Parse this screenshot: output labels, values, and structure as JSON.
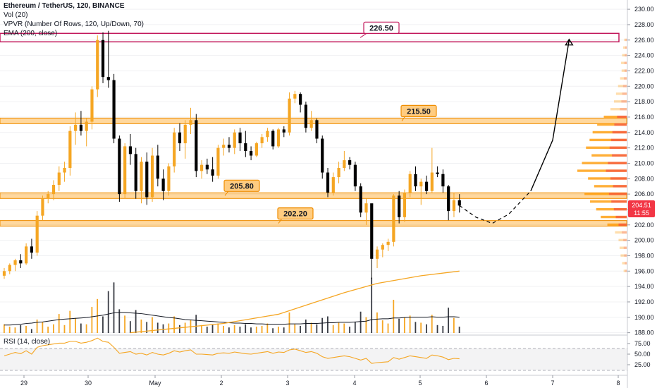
{
  "legend": {
    "title": "Ethereum / TetherUS, 120, BINANCE",
    "vol": "Vol (20)",
    "vpvr": "VPVR (Number Of Rows, 120, Up/Down, 70)",
    "ema": "EMA (200, close)",
    "rsi": "RSI (14, close)"
  },
  "price_badge": {
    "value": "204.51",
    "countdown": "11:55"
  },
  "chart_data": {
    "type": "candlestick",
    "symbol": "Ethereum / TetherUS",
    "interval": "120",
    "exchange": "BINANCE",
    "price_axis": {
      "ticks": [
        "230.00",
        "228.00",
        "226.00",
        "224.00",
        "222.00",
        "220.00",
        "218.00",
        "216.00",
        "214.00",
        "212.00",
        "210.00",
        "208.00",
        "206.00",
        "204.00",
        "202.00",
        "200.00",
        "198.00",
        "196.00",
        "194.00",
        "192.00",
        "190.00",
        "188.00"
      ],
      "range": [
        187.6,
        231.2
      ]
    },
    "time_axis": {
      "ticks": [
        "29",
        "30",
        "May",
        "2",
        "3",
        "4",
        "5",
        "6",
        "7",
        "8"
      ]
    },
    "rsi_axis": {
      "ticks": [
        "75.00",
        "50.00",
        "25.00"
      ]
    },
    "levels": [
      {
        "label": "226.50",
        "price": 226.5,
        "style": "resistance-zone"
      },
      {
        "label": "215.50",
        "price": 215.5,
        "style": "zone"
      },
      {
        "label": "205.80",
        "price": 205.8,
        "style": "zone"
      },
      {
        "label": "202.20",
        "price": 202.2,
        "style": "zone"
      }
    ],
    "candles": [
      [
        195.4,
        196.4,
        195.0,
        196.0
      ],
      [
        196.0,
        197.0,
        195.6,
        196.8
      ],
      [
        196.8,
        197.6,
        196.0,
        197.4
      ],
      [
        197.4,
        198.2,
        196.4,
        197.0
      ],
      [
        197.0,
        199.6,
        196.8,
        199.2
      ],
      [
        199.2,
        200.2,
        197.6,
        198.4
      ],
      [
        198.4,
        203.8,
        198.0,
        203.2
      ],
      [
        203.2,
        205.8,
        202.6,
        205.4
      ],
      [
        205.4,
        206.4,
        204.8,
        206.0
      ],
      [
        206.0,
        207.8,
        205.2,
        207.2
      ],
      [
        207.2,
        209.6,
        206.4,
        208.8
      ],
      [
        208.8,
        210.2,
        207.6,
        209.4
      ],
      [
        209.4,
        214.8,
        208.4,
        214.2
      ],
      [
        214.2,
        216.6,
        212.4,
        215.0
      ],
      [
        215.0,
        216.8,
        213.6,
        214.2
      ],
      [
        214.2,
        215.8,
        212.2,
        215.4
      ],
      [
        215.4,
        220.0,
        214.4,
        219.6
      ],
      [
        219.6,
        226.6,
        218.6,
        226.0
      ],
      [
        226.0,
        227.0,
        220.4,
        221.2
      ],
      [
        221.2,
        227.2,
        219.8,
        220.8
      ],
      [
        220.8,
        221.6,
        212.6,
        213.2
      ],
      [
        213.2,
        213.6,
        205.0,
        206.0
      ],
      [
        206.0,
        212.6,
        205.4,
        212.2
      ],
      [
        212.2,
        213.8,
        209.8,
        211.2
      ],
      [
        211.2,
        212.0,
        205.4,
        206.4
      ],
      [
        206.4,
        210.8,
        204.8,
        210.2
      ],
      [
        210.2,
        211.4,
        204.6,
        205.6
      ],
      [
        205.6,
        212.0,
        205.0,
        211.0
      ],
      [
        211.0,
        212.4,
        207.0,
        208.0
      ],
      [
        208.0,
        209.2,
        205.2,
        206.4
      ],
      [
        206.4,
        210.0,
        205.8,
        209.6
      ],
      [
        209.6,
        214.6,
        208.8,
        214.0
      ],
      [
        214.0,
        215.2,
        211.6,
        212.6
      ],
      [
        212.6,
        215.6,
        210.6,
        215.0
      ],
      [
        215.0,
        217.2,
        213.8,
        215.6
      ],
      [
        215.6,
        216.4,
        208.2,
        209.0
      ],
      [
        209.0,
        210.4,
        208.0,
        209.8
      ],
      [
        209.8,
        210.6,
        208.6,
        209.2
      ],
      [
        209.2,
        210.8,
        207.6,
        208.4
      ],
      [
        208.4,
        212.4,
        208.0,
        212.0
      ],
      [
        212.0,
        213.2,
        211.0,
        212.4
      ],
      [
        212.4,
        213.4,
        211.4,
        212.0
      ],
      [
        212.0,
        214.4,
        211.2,
        214.0
      ],
      [
        214.0,
        214.6,
        211.6,
        212.6
      ],
      [
        212.6,
        214.2,
        210.8,
        211.6
      ],
      [
        211.6,
        212.2,
        210.4,
        211.0
      ],
      [
        211.0,
        212.8,
        210.8,
        212.6
      ],
      [
        212.6,
        213.8,
        212.0,
        213.4
      ],
      [
        213.4,
        214.6,
        212.8,
        214.2
      ],
      [
        214.2,
        214.4,
        211.8,
        212.2
      ],
      [
        212.2,
        214.6,
        212.0,
        214.4
      ],
      [
        214.4,
        214.8,
        213.4,
        214.0
      ],
      [
        214.0,
        219.2,
        213.6,
        218.4
      ],
      [
        218.4,
        219.4,
        217.8,
        219.0
      ],
      [
        219.0,
        219.2,
        216.6,
        217.6
      ],
      [
        217.6,
        218.0,
        214.0,
        214.6
      ],
      [
        214.6,
        216.8,
        214.2,
        215.6
      ],
      [
        215.6,
        215.8,
        212.6,
        213.2
      ],
      [
        213.2,
        213.6,
        208.0,
        208.8
      ],
      [
        208.8,
        209.4,
        205.6,
        206.2
      ],
      [
        206.2,
        208.8,
        205.8,
        208.2
      ],
      [
        208.2,
        210.2,
        207.4,
        209.4
      ],
      [
        209.4,
        211.6,
        209.0,
        210.4
      ],
      [
        210.4,
        210.8,
        209.2,
        209.8
      ],
      [
        209.8,
        210.2,
        206.4,
        207.0
      ],
      [
        207.0,
        207.4,
        203.0,
        203.6
      ],
      [
        203.6,
        205.4,
        202.0,
        204.8
      ],
      [
        204.8,
        204.6,
        195.0,
        197.6
      ],
      [
        197.6,
        199.2,
        196.4,
        198.8
      ],
      [
        198.8,
        199.6,
        197.8,
        199.4
      ],
      [
        199.4,
        200.2,
        198.6,
        199.8
      ],
      [
        199.8,
        206.0,
        199.2,
        205.8
      ],
      [
        205.8,
        206.4,
        202.2,
        203.0
      ],
      [
        203.0,
        206.6,
        202.4,
        206.2
      ],
      [
        206.2,
        209.0,
        205.6,
        208.6
      ],
      [
        208.6,
        209.6,
        206.4,
        207.0
      ],
      [
        207.0,
        208.0,
        204.6,
        207.6
      ],
      [
        207.6,
        208.4,
        206.0,
        206.4
      ],
      [
        206.4,
        212.0,
        206.2,
        208.8
      ],
      [
        208.8,
        209.6,
        208.2,
        208.6
      ],
      [
        208.6,
        209.2,
        206.2,
        207.0
      ],
      [
        207.0,
        207.2,
        202.6,
        203.8
      ],
      [
        203.8,
        206.2,
        203.0,
        205.2
      ],
      [
        205.2,
        206.0,
        203.6,
        204.51
      ]
    ],
    "volume": [
      2.2,
      1.6,
      1.4,
      2.0,
      1.8,
      1.0,
      3.4,
      2.8,
      1.6,
      2.2,
      4.8,
      2.0,
      5.6,
      3.8,
      2.4,
      2.2,
      6.6,
      8.6,
      4.2,
      10.6,
      12.8,
      6.0,
      4.4,
      3.0,
      5.8,
      3.4,
      2.8,
      4.0,
      2.6,
      2.2,
      2.4,
      4.2,
      2.0,
      2.6,
      3.4,
      4.6,
      2.0,
      1.6,
      2.2,
      2.4,
      1.8,
      1.4,
      2.0,
      1.6,
      2.2,
      1.4,
      1.6,
      1.8,
      2.4,
      1.2,
      1.6,
      1.4,
      5.2,
      2.2,
      1.8,
      3.4,
      2.6,
      2.2,
      3.8,
      4.2,
      2.0,
      2.6,
      2.4,
      1.6,
      2.8,
      5.4,
      4.0,
      14.0,
      5.2,
      3.2,
      2.4,
      8.4,
      3.6,
      4.0,
      4.4,
      2.8,
      2.6,
      2.2,
      4.6,
      2.0,
      1.8,
      6.4,
      3.8,
      1.6
    ],
    "volume_sma": [
      2.0,
      2.0,
      2.1,
      2.2,
      2.4,
      2.5,
      2.7,
      2.8,
      3.0,
      3.2,
      3.4,
      3.5,
      3.6,
      3.7,
      3.8,
      3.9,
      4.1,
      4.3,
      4.5,
      4.8,
      5.1,
      5.2,
      5.2,
      5.1,
      5.0,
      4.9,
      4.7,
      4.5,
      4.3,
      4.1,
      3.9,
      3.8,
      3.6,
      3.4,
      3.3,
      3.2,
      3.1,
      3.0,
      2.9,
      2.8,
      2.7,
      2.6,
      2.5,
      2.5,
      2.4,
      2.4,
      2.3,
      2.3,
      2.2,
      2.2,
      2.2,
      2.2,
      2.3,
      2.3,
      2.3,
      2.4,
      2.4,
      2.4,
      2.5,
      2.6,
      2.6,
      2.7,
      2.7,
      2.7,
      2.8,
      2.9,
      3.0,
      3.4,
      3.5,
      3.6,
      3.6,
      3.8,
      3.8,
      3.9,
      4.0,
      4.0,
      4.0,
      4.0,
      4.1,
      4.0,
      4.0,
      4.1,
      4.1,
      4.0
    ],
    "ema_200": [
      [
        23,
        188.0
      ],
      [
        40,
        189.2
      ],
      [
        50,
        190.4
      ],
      [
        56,
        191.8
      ],
      [
        62,
        193.2
      ],
      [
        68,
        194.4
      ],
      [
        76,
        195.4
      ],
      [
        83,
        196.0
      ]
    ],
    "rsi": [
      46,
      50,
      54,
      51,
      58,
      50,
      66,
      70,
      72,
      74,
      76,
      76,
      80,
      80,
      76,
      78,
      82,
      88,
      80,
      78,
      66,
      52,
      54,
      56,
      50,
      52,
      48,
      54,
      50,
      48,
      52,
      58,
      55,
      58,
      60,
      50,
      50,
      49,
      48,
      52,
      53,
      52,
      55,
      53,
      51,
      50,
      52,
      54,
      56,
      52,
      55,
      54,
      60,
      62,
      58,
      54,
      56,
      52,
      44,
      40,
      42,
      44,
      46,
      44,
      40,
      36,
      40,
      28,
      30,
      31,
      32,
      42,
      38,
      42,
      46,
      44,
      42,
      40,
      48,
      46,
      43,
      37,
      40,
      39
    ],
    "vpvr": [
      [
        226.0,
        1.0
      ],
      [
        225.0,
        1.4
      ],
      [
        224.0,
        1.8
      ],
      [
        223.0,
        2.2
      ],
      [
        222.0,
        2.0
      ],
      [
        221.0,
        2.6
      ],
      [
        220.0,
        3.4
      ],
      [
        219.0,
        4.2
      ],
      [
        218.0,
        5.0
      ],
      [
        217.0,
        6.4
      ],
      [
        216.0,
        9.0
      ],
      [
        215.0,
        11.6
      ],
      [
        214.0,
        13.4
      ],
      [
        213.0,
        14.6
      ],
      [
        212.0,
        16.0
      ],
      [
        211.0,
        13.8
      ],
      [
        210.0,
        17.6
      ],
      [
        209.0,
        19.4
      ],
      [
        208.0,
        15.2
      ],
      [
        207.0,
        12.8
      ],
      [
        206.0,
        16.6
      ],
      [
        205.0,
        14.4
      ],
      [
        204.0,
        12.0
      ],
      [
        203.0,
        10.2
      ],
      [
        202.0,
        7.6
      ],
      [
        201.0,
        4.6
      ],
      [
        200.0,
        3.2
      ],
      [
        199.0,
        2.8
      ],
      [
        198.0,
        2.4
      ],
      [
        197.0,
        1.8
      ],
      [
        196.0,
        1.2
      ]
    ],
    "projection": [
      [
        83,
        204.51
      ],
      [
        86,
        203.0
      ],
      [
        89,
        202.2
      ],
      [
        92,
        203.4
      ],
      [
        96,
        206.4
      ],
      [
        100,
        213.0
      ],
      [
        103,
        226.0
      ]
    ]
  }
}
